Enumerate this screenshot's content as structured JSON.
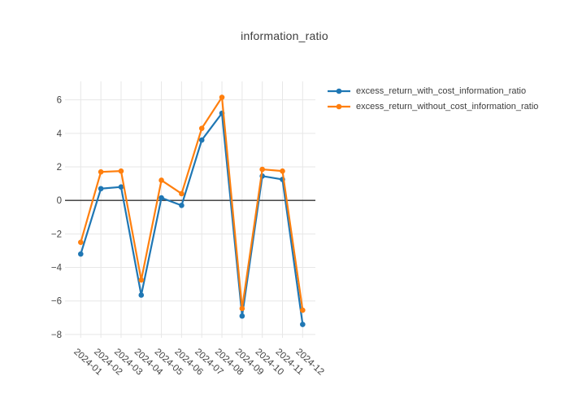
{
  "title": "information_ratio",
  "colors": {
    "with_cost_series": "#1f77b4",
    "without_cost_series": "#ff7f0e",
    "grid": "#e7e7e7",
    "zero_line": "#333333",
    "title_text": "#3d3d3d",
    "tick_text": "#444444",
    "background": "#ffffff"
  },
  "legend": {
    "items": [
      {
        "label": "excess_return_with_cost_information_ratio",
        "color": "#1f77b4"
      },
      {
        "label": "excess_return_without_cost_information_ratio",
        "color": "#ff7f0e"
      }
    ]
  },
  "chart_data": {
    "type": "line",
    "mode": "lines+markers",
    "title": "information_ratio",
    "xlabel": "",
    "ylabel": "",
    "categories": [
      "2024-01",
      "2024-02",
      "2024-03",
      "2024-04",
      "2024-05",
      "2024-06",
      "2024-07",
      "2024-08",
      "2024-09",
      "2024-10",
      "2024-11",
      "2024-12"
    ],
    "series": [
      {
        "name": "excess_return_with_cost_information_ratio",
        "color": "#1f77b4",
        "values": [
          -3.2,
          0.7,
          0.8,
          -5.65,
          0.15,
          -0.3,
          3.6,
          5.2,
          -6.9,
          1.45,
          1.25,
          -7.4
        ]
      },
      {
        "name": "excess_return_without_cost_information_ratio",
        "color": "#ff7f0e",
        "values": [
          -2.5,
          1.7,
          1.75,
          -4.75,
          1.2,
          0.4,
          4.3,
          6.15,
          -6.45,
          1.85,
          1.75,
          -6.55
        ]
      }
    ],
    "yticks": [
      6,
      4,
      2,
      0,
      -2,
      -4,
      -6,
      -8
    ],
    "ylim": [
      -8.2,
      7.1
    ],
    "grid": true,
    "zeroline_y": 0,
    "xtick_angle_deg": 42,
    "legend_position": "outside-top-right"
  }
}
